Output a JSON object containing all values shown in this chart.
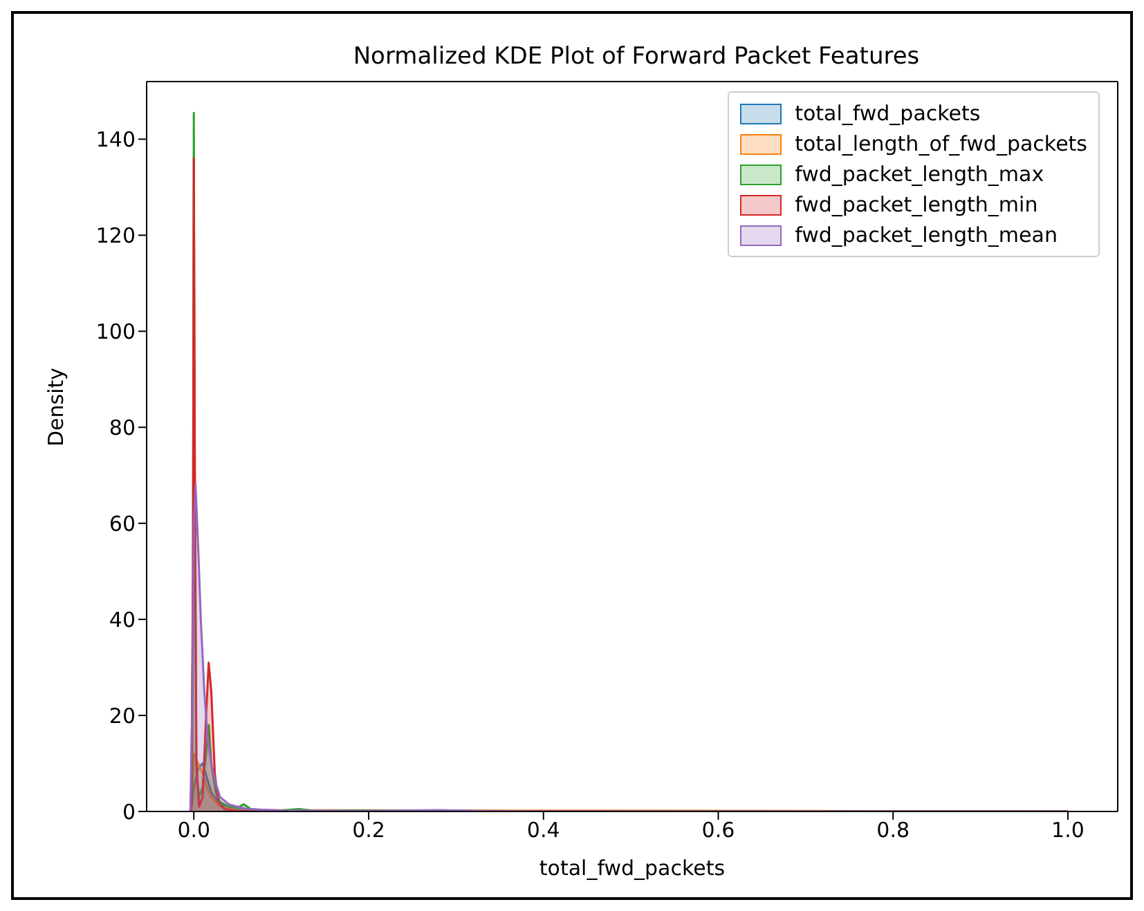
{
  "chart_data": {
    "type": "area",
    "title": "Normalized KDE Plot of Forward Packet Features",
    "xlabel": "total_fwd_packets",
    "ylabel": "Density",
    "xlim": [
      -0.054,
      1.057
    ],
    "ylim": [
      0,
      152
    ],
    "xticks": [
      {
        "value": 0,
        "label": "0.0"
      },
      {
        "value": 0.2,
        "label": "0.2"
      },
      {
        "value": 0.4,
        "label": "0.4"
      },
      {
        "value": 0.6,
        "label": "0.6"
      },
      {
        "value": 0.8,
        "label": "0.8"
      },
      {
        "value": 1,
        "label": "1.0"
      }
    ],
    "yticks": [
      0,
      20,
      40,
      60,
      80,
      100,
      120,
      140
    ],
    "grid": false,
    "legend": "top right",
    "series": [
      {
        "name": "total_fwd_packets",
        "color": "#1f77b4",
        "x": [
          -0.003,
          0,
          0.005,
          0.01,
          0.015,
          0.02,
          0.03,
          0.05,
          0.1,
          1.0
        ],
        "values": [
          0,
          5,
          9,
          10,
          7,
          4,
          1.5,
          0.5,
          0.1,
          0
        ]
      },
      {
        "name": "total_length_of_fwd_packets",
        "color": "#ff7f0e",
        "x": [
          -0.003,
          0,
          0.005,
          0.01,
          0.015,
          0.02,
          0.03,
          0.05,
          1.0
        ],
        "values": [
          0,
          12,
          10,
          8,
          5,
          3,
          1,
          0.3,
          0
        ]
      },
      {
        "name": "fwd_packet_length_max",
        "color": "#2ca02c",
        "x": [
          -0.004,
          -0.002,
          -0.001,
          0,
          0.001,
          0.003,
          0.006,
          0.01,
          0.014,
          0.017,
          0.02,
          0.025,
          0.03,
          0.04,
          0.05,
          0.057,
          0.065,
          0.08,
          0.1,
          0.12,
          0.14,
          0.18,
          0.25,
          0.4,
          0.6,
          1.0
        ],
        "values": [
          0,
          2,
          40,
          145.5,
          60,
          8,
          3,
          5,
          12,
          18,
          10,
          4,
          2,
          1,
          0.8,
          1.5,
          0.5,
          0.3,
          0.2,
          0.5,
          0.1,
          0.2,
          0.1,
          0,
          0,
          0
        ]
      },
      {
        "name": "fwd_packet_length_min",
        "color": "#d62728",
        "x": [
          -0.003,
          -0.001,
          0,
          0.001,
          0.003,
          0.006,
          0.01,
          0.014,
          0.017,
          0.02,
          0.024,
          0.028,
          0.035,
          0.05,
          0.1,
          1.0
        ],
        "values": [
          0,
          50,
          136,
          80,
          10,
          1,
          3,
          20,
          31,
          25,
          8,
          2,
          0.5,
          0.1,
          0,
          0
        ]
      },
      {
        "name": "fwd_packet_length_mean",
        "color": "#9467bd",
        "x": [
          -0.004,
          -0.002,
          0,
          0.002,
          0.005,
          0.008,
          0.012,
          0.016,
          0.02,
          0.025,
          0.03,
          0.04,
          0.06,
          0.1,
          0.2,
          0.28,
          0.33,
          0.4,
          0.5,
          1.0
        ],
        "values": [
          0,
          20,
          60,
          68,
          55,
          40,
          25,
          15,
          10,
          6,
          3,
          1.5,
          0.5,
          0.2,
          0.1,
          0.3,
          0.1,
          0,
          0,
          0
        ]
      }
    ]
  }
}
